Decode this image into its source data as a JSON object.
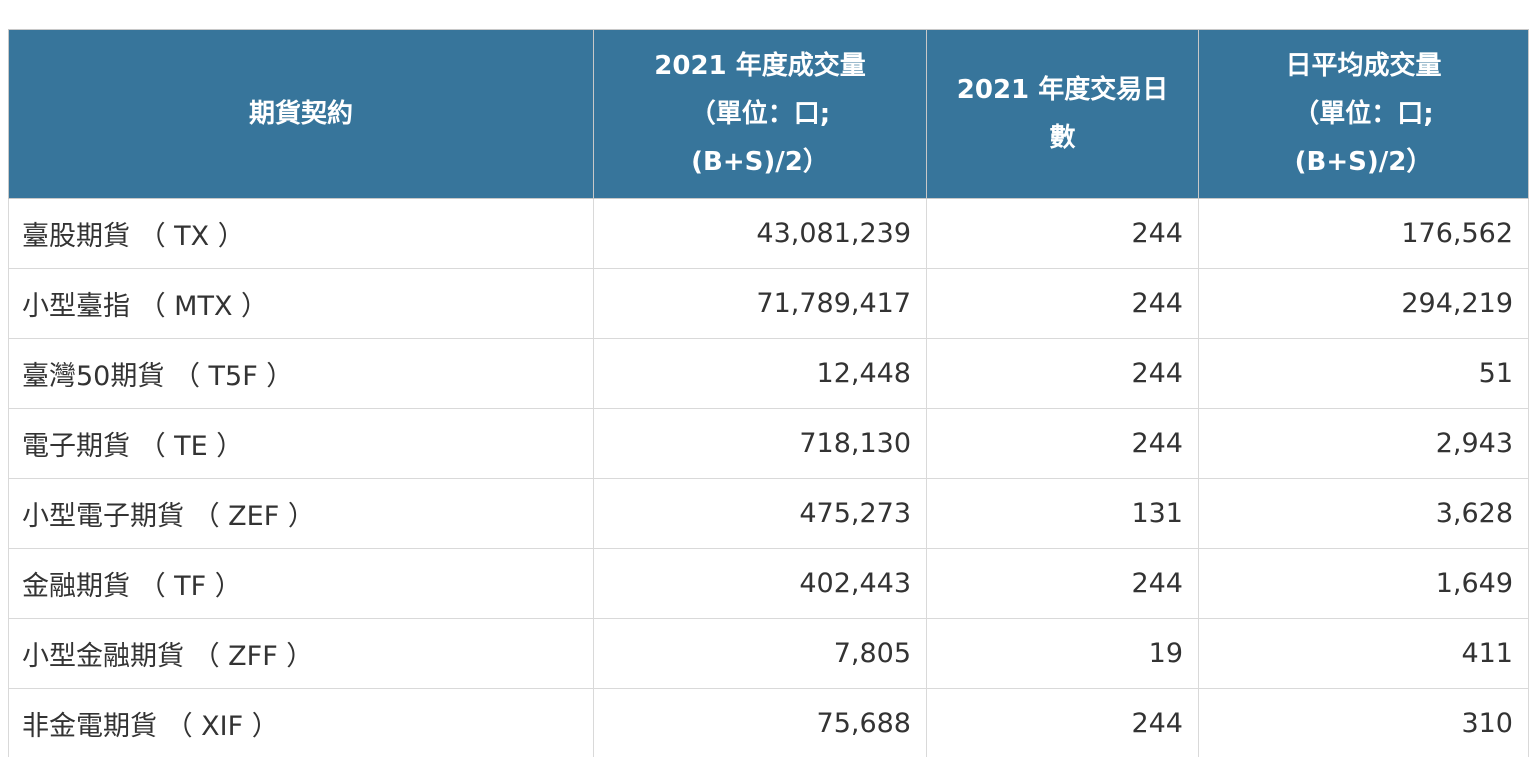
{
  "colors": {
    "header_bg": "#37759B",
    "header_text": "#ffffff",
    "body_text": "#333333",
    "inner_border": "#d9d9d9",
    "outer_border": "#adadad"
  },
  "table": {
    "header": {
      "columns": [
        {
          "id": "contract",
          "label": "期貨契約",
          "lines": [
            "期貨契約"
          ]
        },
        {
          "id": "annual-volume",
          "label": "2021 年度成交量（單位：口; (B+S)/2）",
          "lines": [
            "2021 年度成交量",
            "（單位：口;",
            "(B+S)/2）"
          ]
        },
        {
          "id": "trading-days",
          "label": "2021 年度交易日數",
          "lines": [
            "2021 年度交易日",
            "數"
          ]
        },
        {
          "id": "daily-avg-volume",
          "label": "日平均成交量（單位：口; (B+S)/2）",
          "lines": [
            "日平均成交量",
            "（單位：口;",
            "(B+S)/2）"
          ]
        }
      ]
    },
    "rows": [
      {
        "cells": [
          "臺股期貨 （ TX ）",
          "43,081,239",
          "244",
          "176,562"
        ]
      },
      {
        "cells": [
          "小型臺指 （ MTX ）",
          "71,789,417",
          "244",
          "294,219"
        ]
      },
      {
        "cells": [
          "臺灣50期貨 （ T5F ）",
          "12,448",
          "244",
          "51"
        ]
      },
      {
        "cells": [
          "電子期貨 （ TE ）",
          "718,130",
          "244",
          "2,943"
        ]
      },
      {
        "cells": [
          "小型電子期貨 （ ZEF ）",
          "475,273",
          "131",
          "3,628"
        ]
      },
      {
        "cells": [
          "金融期貨 （ TF ）",
          "402,443",
          "244",
          "1,649"
        ]
      },
      {
        "cells": [
          "小型金融期貨 （ ZFF ）",
          "7,805",
          "19",
          "411"
        ]
      },
      {
        "cells": [
          "非金電期貨 （ XIF ）",
          "75,688",
          "244",
          "310"
        ]
      }
    ]
  },
  "chart_data": {
    "type": "table",
    "columns": [
      "期貨契約",
      "2021 年度成交量（單位：口; (B+S)/2）",
      "2021 年度交易日數",
      "日平均成交量（單位：口; (B+S)/2）"
    ],
    "rows": [
      [
        "臺股期貨 （ TX ）",
        43081239,
        244,
        176562
      ],
      [
        "小型臺指 （ MTX ）",
        71789417,
        244,
        294219
      ],
      [
        "臺灣50期貨 （ T5F ）",
        12448,
        244,
        51
      ],
      [
        "電子期貨 （ TE ）",
        718130,
        244,
        2943
      ],
      [
        "小型電子期貨 （ ZEF ）",
        475273,
        131,
        3628
      ],
      [
        "金融期貨 （ TF ）",
        402443,
        244,
        1649
      ],
      [
        "小型金融期貨 （ ZFF ）",
        7805,
        19,
        411
      ],
      [
        "非金電期貨 （ XIF ）",
        75688,
        244,
        310
      ]
    ]
  }
}
